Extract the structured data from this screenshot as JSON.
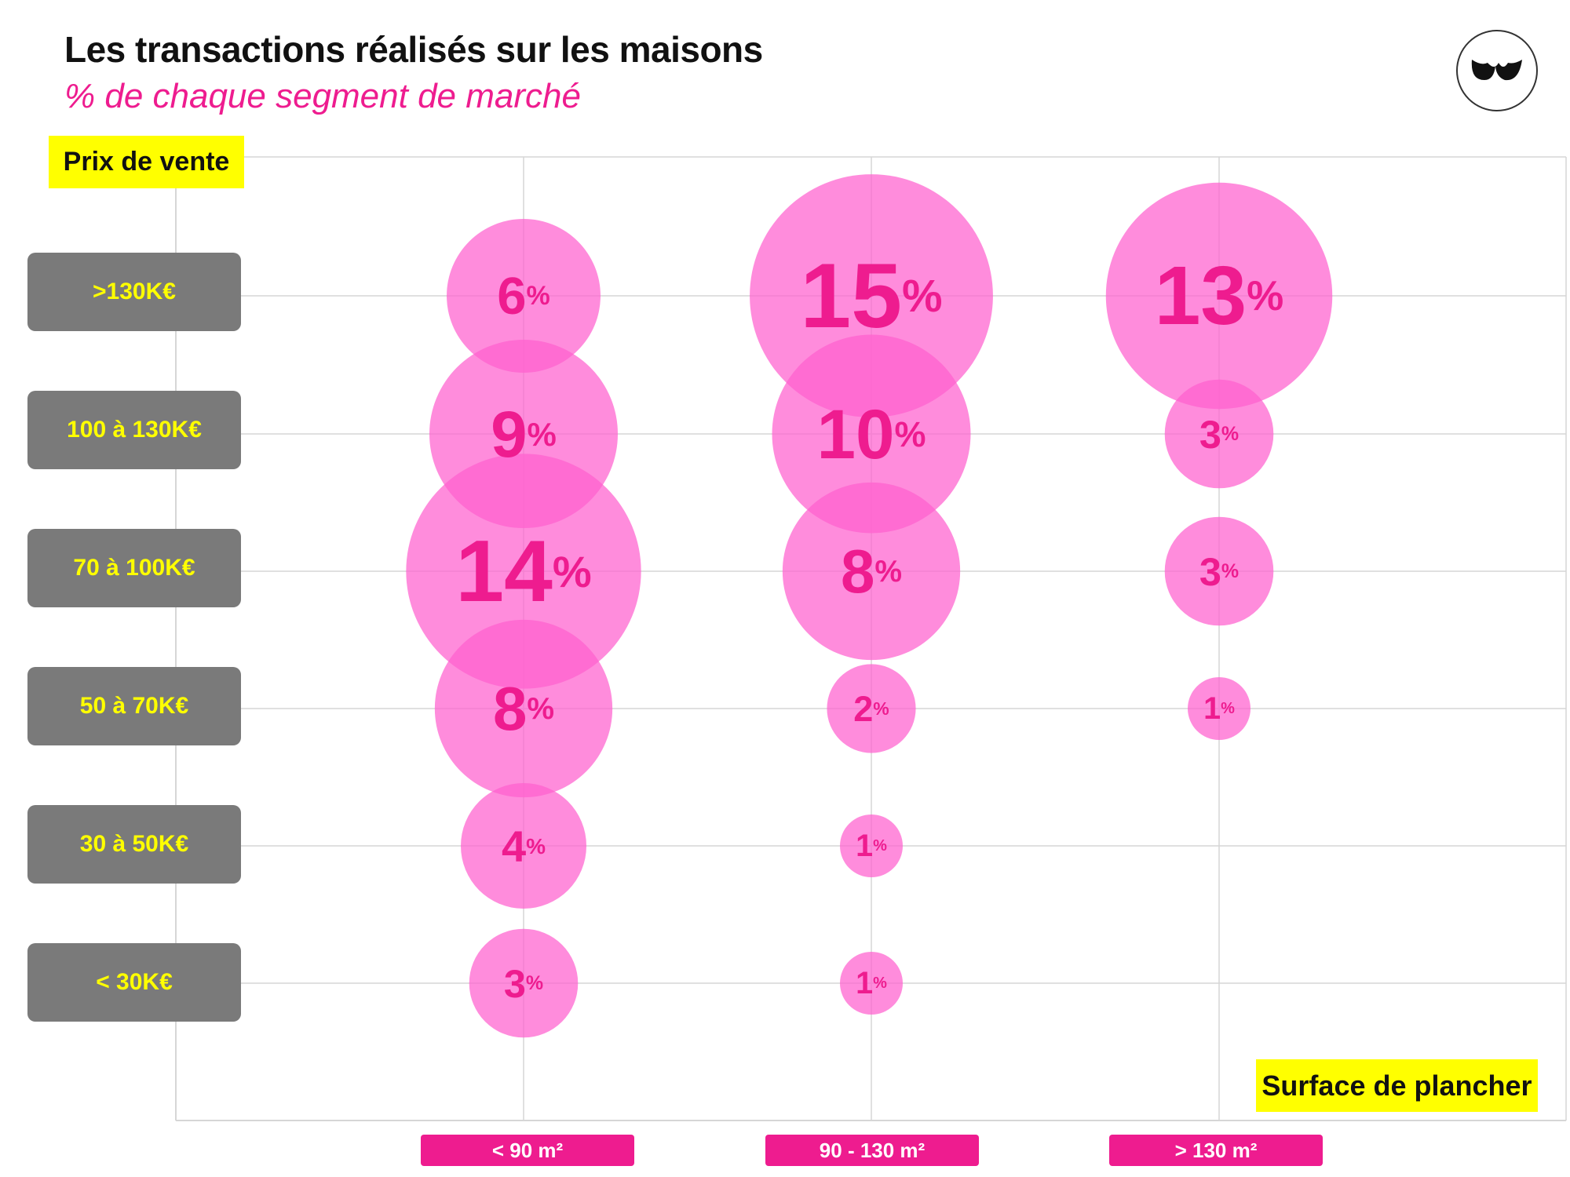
{
  "header": {
    "title": "Les transactions réalisés sur les maisons",
    "subtitle": "% de chaque segment de marché"
  },
  "colors": {
    "accent": "#ee1c8f",
    "bubble": "#ff5fcf",
    "highlight": "#ffff00",
    "row_label_bg": "#7a7a7a"
  },
  "chart_data": {
    "type": "bubble",
    "ylabel": "Prix de vente",
    "xlabel": "Surface de plancher",
    "categories_x": [
      "< 90 m²",
      "90 - 130 m²",
      "> 130 m²"
    ],
    "categories_y": [
      ">130K€",
      "100 à 130K€",
      "70 à 100K€",
      "50 à 70K€",
      "30 à 50K€",
      "< 30K€"
    ],
    "unit": "%",
    "grid": true,
    "cells": [
      {
        "x": "< 90 m²",
        "y": ">130K€",
        "value": 6
      },
      {
        "x": "< 90 m²",
        "y": "100 à 130K€",
        "value": 9
      },
      {
        "x": "< 90 m²",
        "y": "70 à 100K€",
        "value": 14
      },
      {
        "x": "< 90 m²",
        "y": "50 à 70K€",
        "value": 8
      },
      {
        "x": "< 90 m²",
        "y": "30 à 50K€",
        "value": 4
      },
      {
        "x": "< 90 m²",
        "y": "< 30K€",
        "value": 3
      },
      {
        "x": "90 - 130 m²",
        "y": ">130K€",
        "value": 15
      },
      {
        "x": "90 - 130 m²",
        "y": "100 à 130K€",
        "value": 10
      },
      {
        "x": "90 - 130 m²",
        "y": "70 à 100K€",
        "value": 8
      },
      {
        "x": "90 - 130 m²",
        "y": "50 à 70K€",
        "value": 2
      },
      {
        "x": "90 - 130 m²",
        "y": "30 à 50K€",
        "value": 1
      },
      {
        "x": "90 - 130 m²",
        "y": "< 30K€",
        "value": 1
      },
      {
        "x": "> 130 m²",
        "y": ">130K€",
        "value": 13
      },
      {
        "x": "> 130 m²",
        "y": "100 à 130K€",
        "value": 3
      },
      {
        "x": "> 130 m²",
        "y": "70 à 100K€",
        "value": 3
      },
      {
        "x": "> 130 m²",
        "y": "50 à 70K€",
        "value": 1
      }
    ]
  }
}
